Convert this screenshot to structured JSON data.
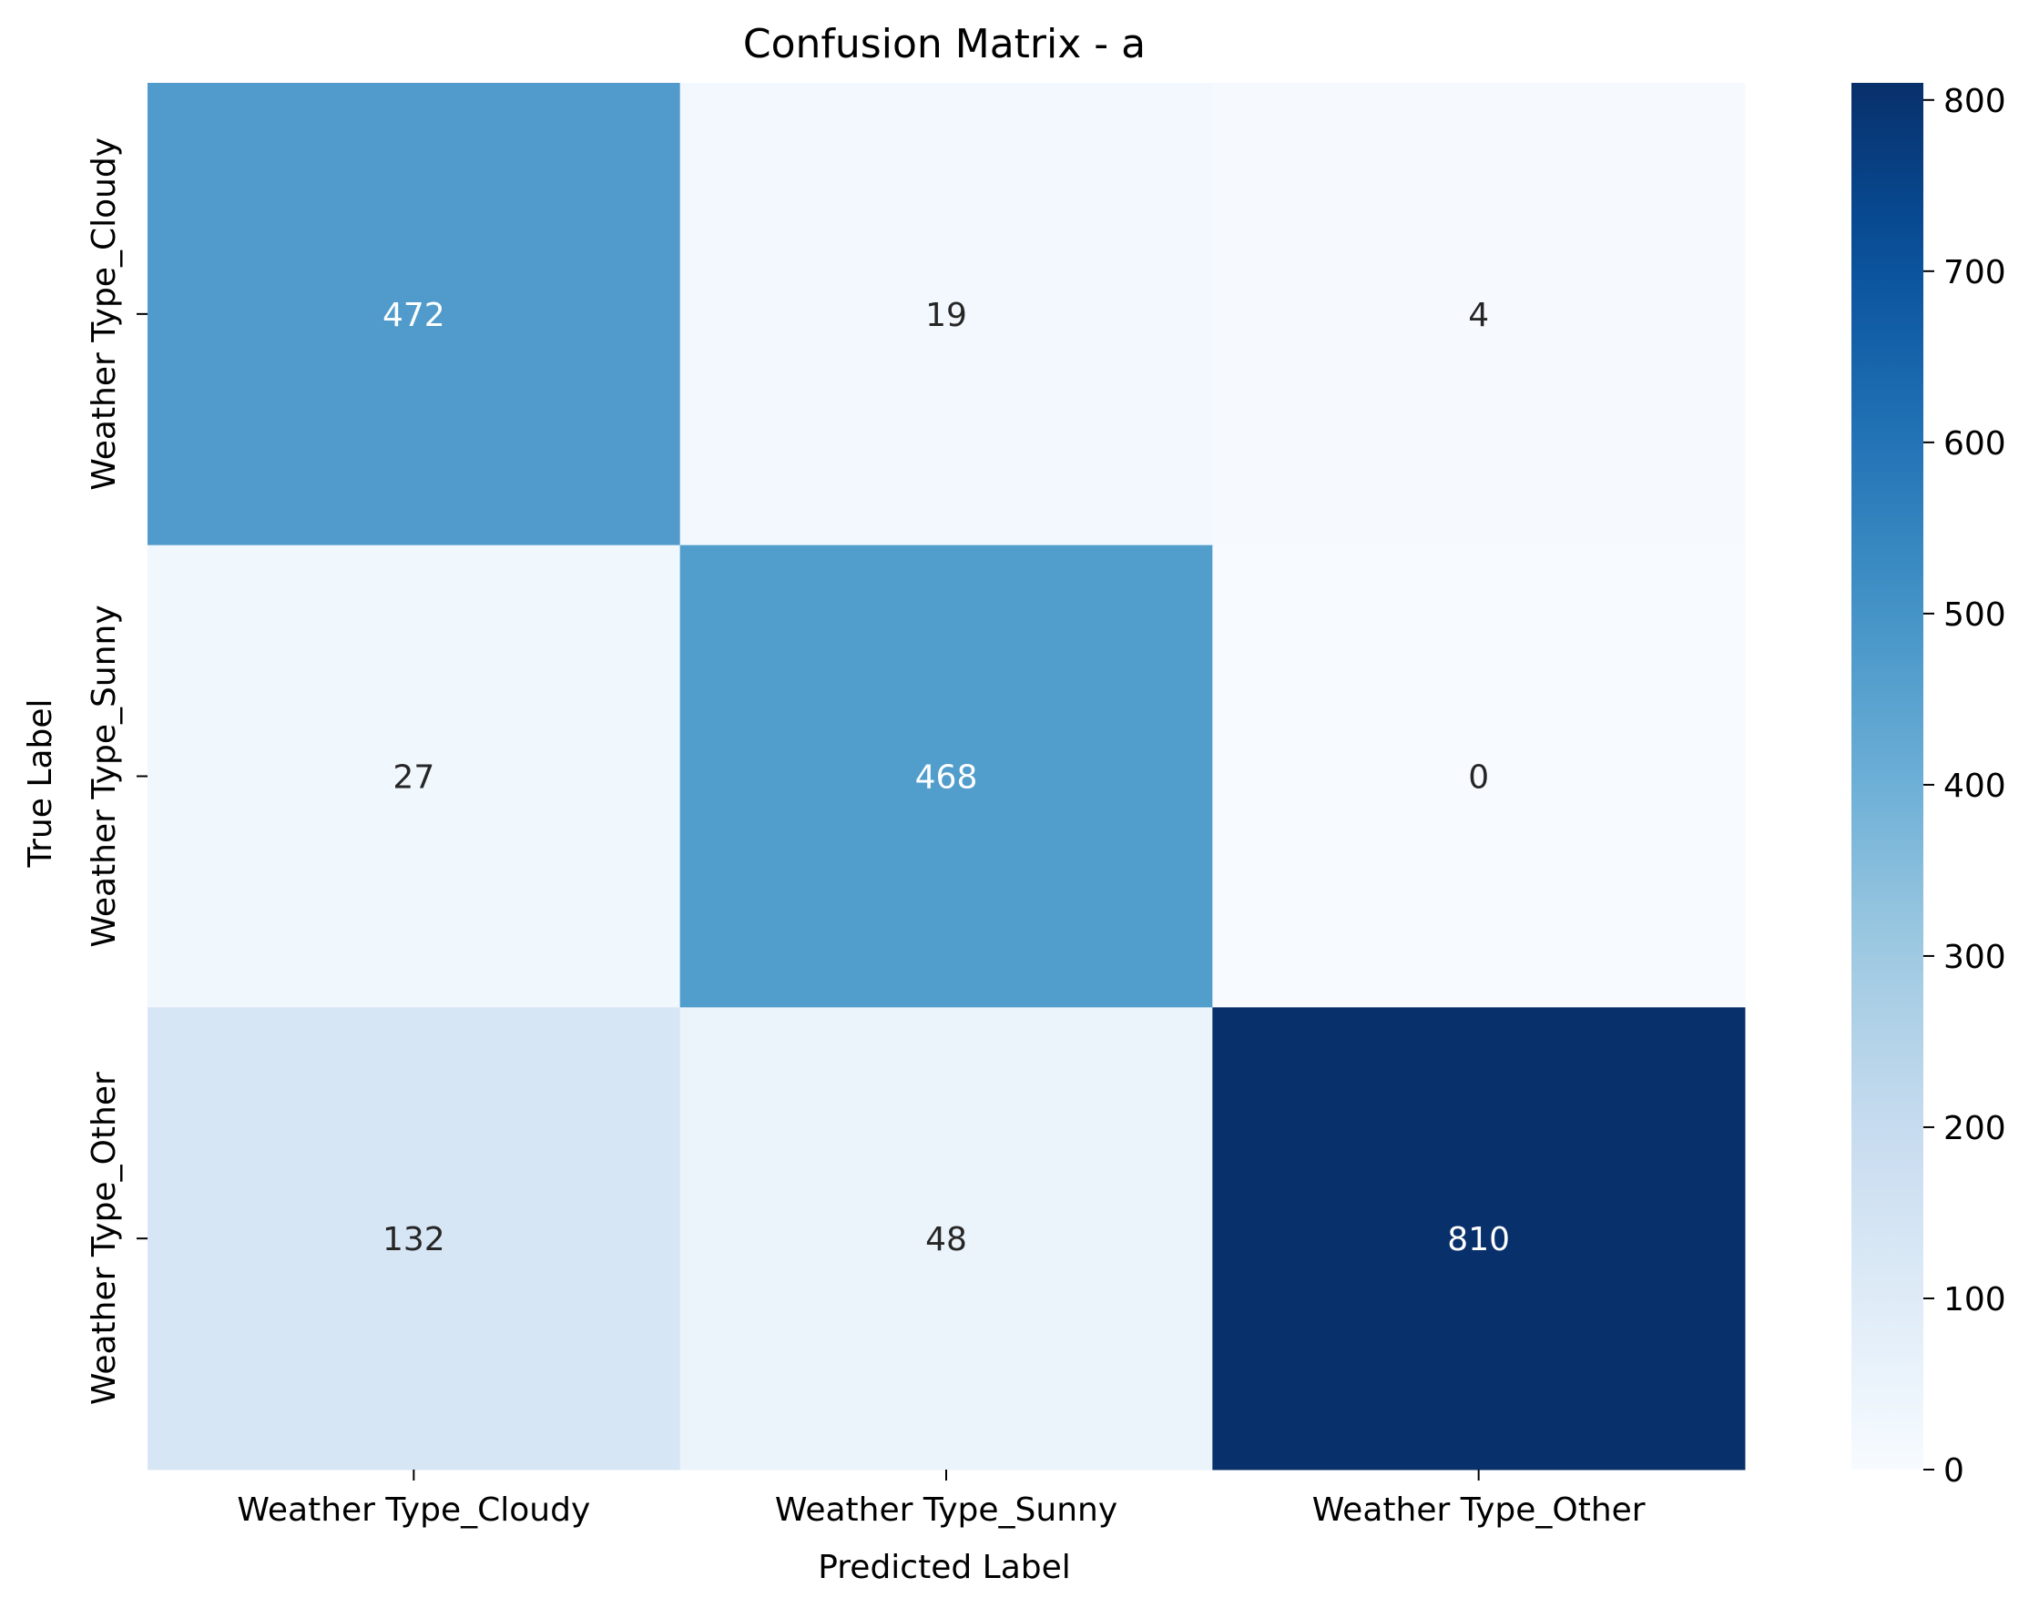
{
  "chart_data": {
    "type": "heatmap",
    "title": "Confusion Matrix - a",
    "xlabel": "Predicted Label",
    "ylabel": "True Label",
    "x_categories": [
      "Weather Type_Cloudy",
      "Weather Type_Sunny",
      "Weather Type_Other"
    ],
    "y_categories": [
      "Weather Type_Cloudy",
      "Weather Type_Sunny",
      "Weather Type_Other"
    ],
    "values": [
      [
        472,
        19,
        4
      ],
      [
        27,
        468,
        0
      ],
      [
        132,
        48,
        810
      ]
    ],
    "colormap": "Blues",
    "colorbar": {
      "range": [
        0,
        810
      ],
      "ticks": [
        0,
        100,
        200,
        300,
        400,
        500,
        600,
        700,
        800
      ]
    },
    "colors": {
      "low": "#f7fbff",
      "high": "#08306b",
      "annotation_dark": "#262626",
      "annotation_light": "#ffffff"
    }
  }
}
